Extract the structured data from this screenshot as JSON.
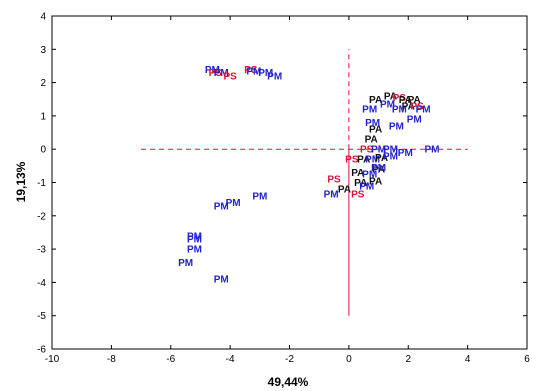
{
  "chart_data": {
    "type": "scatter",
    "xlabel": "49,44%",
    "ylabel": "19,13%",
    "xlim": [
      -10,
      6
    ],
    "ylim": [
      -6,
      4
    ],
    "x_ticks": [
      -10,
      -8,
      -6,
      -4,
      -2,
      0,
      2,
      4,
      6
    ],
    "y_ticks": [
      -6,
      -5,
      -4,
      -3,
      -2,
      -1,
      0,
      1,
      2,
      3,
      4
    ],
    "grid": false,
    "colors": {
      "PM": "#2222cc",
      "PA": "#111111",
      "PS": "#e0103a",
      "ref_line": "#e0103a"
    },
    "reference_lines": [
      {
        "orientation": "horizontal",
        "at": 0,
        "from": -7,
        "to": 4,
        "style": "dashed"
      },
      {
        "orientation": "vertical",
        "at": 0,
        "from": 0,
        "to": 3,
        "style": "dashed"
      },
      {
        "orientation": "vertical",
        "at": 0,
        "from": -5,
        "to": 0,
        "style": "solid"
      }
    ],
    "points": [
      {
        "label": "PM",
        "x": -4.6,
        "y": 2.4
      },
      {
        "label": "PS",
        "x": -4.5,
        "y": 2.3
      },
      {
        "label": "PM",
        "x": -4.3,
        "y": 2.3
      },
      {
        "label": "PS",
        "x": -4.0,
        "y": 2.2
      },
      {
        "label": "PS",
        "x": -3.3,
        "y": 2.4
      },
      {
        "label": "PM",
        "x": -3.2,
        "y": 2.35
      },
      {
        "label": "PM",
        "x": -2.8,
        "y": 2.3
      },
      {
        "label": "PM",
        "x": -2.5,
        "y": 2.2
      },
      {
        "label": "PM",
        "x": -5.2,
        "y": -2.6
      },
      {
        "label": "PM",
        "x": -5.2,
        "y": -2.7
      },
      {
        "label": "PM",
        "x": -5.2,
        "y": -3.0
      },
      {
        "label": "PM",
        "x": -5.5,
        "y": -3.4
      },
      {
        "label": "PM",
        "x": -4.3,
        "y": -3.9
      },
      {
        "label": "PM",
        "x": -4.3,
        "y": -1.7
      },
      {
        "label": "PM",
        "x": -3.9,
        "y": -1.6
      },
      {
        "label": "PM",
        "x": -3.0,
        "y": -1.4
      },
      {
        "label": "PM",
        "x": -0.6,
        "y": -1.35
      },
      {
        "label": "PS",
        "x": -0.5,
        "y": -0.9
      },
      {
        "label": "PA",
        "x": -0.15,
        "y": -1.2
      },
      {
        "label": "PS",
        "x": 0.3,
        "y": -1.35
      },
      {
        "label": "PS",
        "x": 0.1,
        "y": -0.3
      },
      {
        "label": "PA",
        "x": 0.5,
        "y": -0.3
      },
      {
        "label": "PM",
        "x": 0.8,
        "y": -0.3
      },
      {
        "label": "PA",
        "x": 1.1,
        "y": -0.25
      },
      {
        "label": "PM",
        "x": 1.4,
        "y": -0.2
      },
      {
        "label": "PA",
        "x": 0.3,
        "y": -0.7
      },
      {
        "label": "PM",
        "x": 0.7,
        "y": -0.75
      },
      {
        "label": "PA",
        "x": 1.0,
        "y": -0.6
      },
      {
        "label": "PA",
        "x": 0.4,
        "y": -1.0
      },
      {
        "label": "PA",
        "x": 0.9,
        "y": -0.95
      },
      {
        "label": "PM",
        "x": 0.6,
        "y": -1.1
      },
      {
        "label": "PM",
        "x": 1.0,
        "y": -0.55
      },
      {
        "label": "PS",
        "x": 0.6,
        "y": 0.0
      },
      {
        "label": "PA",
        "x": 0.75,
        "y": 0.3
      },
      {
        "label": "PM",
        "x": 1.0,
        "y": 0.0
      },
      {
        "label": "PM",
        "x": 1.4,
        "y": 0.0
      },
      {
        "label": "PM",
        "x": 1.9,
        "y": -0.1
      },
      {
        "label": "PM",
        "x": 2.8,
        "y": 0.0
      },
      {
        "label": "PA",
        "x": 0.9,
        "y": 0.6
      },
      {
        "label": "PM",
        "x": 0.8,
        "y": 0.8
      },
      {
        "label": "PM",
        "x": 1.6,
        "y": 0.7
      },
      {
        "label": "PM",
        "x": 2.2,
        "y": 0.9
      },
      {
        "label": "PM",
        "x": 0.7,
        "y": 1.2
      },
      {
        "label": "PA",
        "x": 0.9,
        "y": 1.5
      },
      {
        "label": "PA",
        "x": 1.4,
        "y": 1.6
      },
      {
        "label": "PS",
        "x": 1.7,
        "y": 1.55
      },
      {
        "label": "PA",
        "x": 1.9,
        "y": 1.5
      },
      {
        "label": "PM",
        "x": 1.3,
        "y": 1.35
      },
      {
        "label": "PM",
        "x": 1.7,
        "y": 1.2
      },
      {
        "label": "PA",
        "x": 2.0,
        "y": 1.3
      },
      {
        "label": "PS",
        "x": 2.3,
        "y": 1.3
      },
      {
        "label": "PM",
        "x": 2.5,
        "y": 1.2
      },
      {
        "label": "PA",
        "x": 2.2,
        "y": 1.5
      }
    ]
  }
}
